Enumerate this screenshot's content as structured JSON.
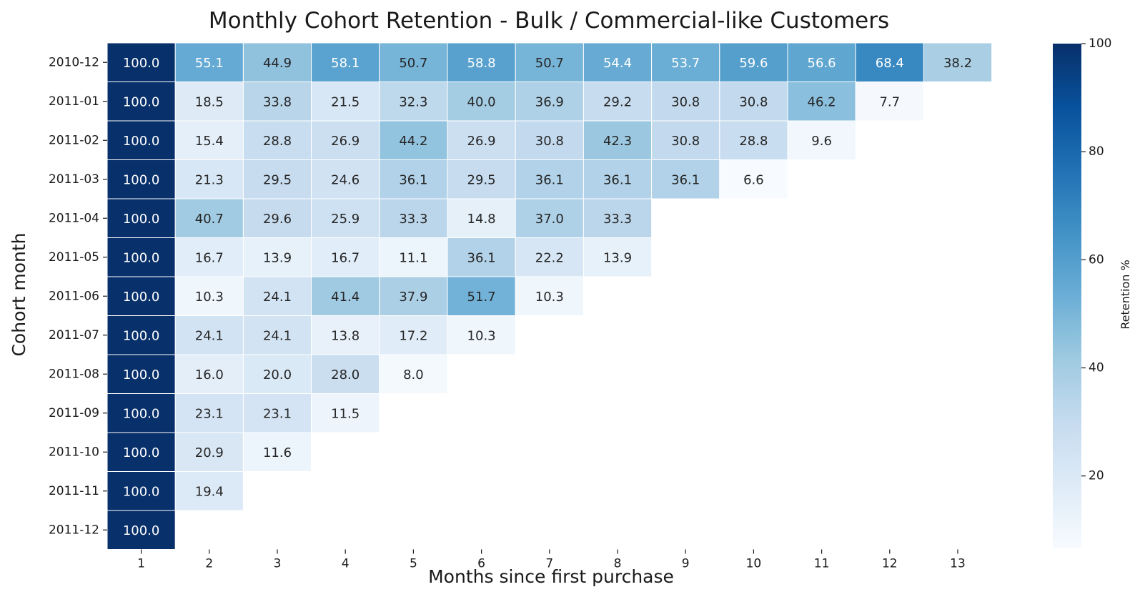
{
  "chart_data": {
    "type": "heatmap",
    "title": "Monthly Cohort Retention - Bulk / Commercial-like Customers",
    "xlabel": "Months since first purchase",
    "ylabel": "Cohort month",
    "colorbar_label": "Retention %",
    "colormap": "Blues",
    "color_range": [
      6.6,
      100
    ],
    "colorbar_ticks": [
      20,
      40,
      60,
      80,
      100
    ],
    "x_categories": [
      "1",
      "2",
      "3",
      "4",
      "5",
      "6",
      "7",
      "8",
      "9",
      "10",
      "11",
      "12",
      "13"
    ],
    "y_categories": [
      "2010-12",
      "2011-01",
      "2011-02",
      "2011-03",
      "2011-04",
      "2011-05",
      "2011-06",
      "2011-07",
      "2011-08",
      "2011-09",
      "2011-10",
      "2011-11",
      "2011-12"
    ],
    "values": [
      [
        100.0,
        55.1,
        44.9,
        58.1,
        50.7,
        58.8,
        50.7,
        54.4,
        53.7,
        59.6,
        56.6,
        68.4,
        38.2
      ],
      [
        100.0,
        18.5,
        33.8,
        21.5,
        32.3,
        40.0,
        36.9,
        29.2,
        30.8,
        30.8,
        46.2,
        7.7
      ],
      [
        100.0,
        15.4,
        28.8,
        26.9,
        44.2,
        26.9,
        30.8,
        42.3,
        30.8,
        28.8,
        9.6
      ],
      [
        100.0,
        21.3,
        29.5,
        24.6,
        36.1,
        29.5,
        36.1,
        36.1,
        36.1,
        6.6
      ],
      [
        100.0,
        40.7,
        29.6,
        25.9,
        33.3,
        14.8,
        37.0,
        33.3
      ],
      [
        100.0,
        16.7,
        13.9,
        16.7,
        11.1,
        36.1,
        22.2,
        13.9
      ],
      [
        100.0,
        10.3,
        24.1,
        41.4,
        37.9,
        51.7,
        10.3
      ],
      [
        100.0,
        24.1,
        24.1,
        13.8,
        17.2,
        10.3
      ],
      [
        100.0,
        16.0,
        20.0,
        28.0,
        8.0
      ],
      [
        100.0,
        23.1,
        23.1,
        11.5
      ],
      [
        100.0,
        20.9,
        11.6
      ],
      [
        100.0,
        19.4
      ],
      [
        100.0
      ]
    ],
    "value_format": "0.0",
    "legend": "colorbar-right"
  }
}
